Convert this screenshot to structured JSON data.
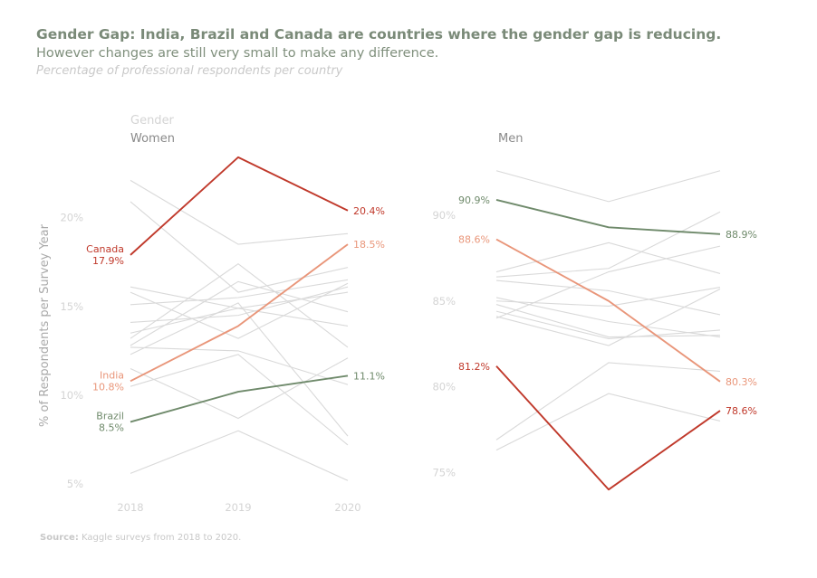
{
  "header": {
    "title": "Gender Gap: India, Brazil and Canada are countries where the gender gap is reducing.",
    "subtitle": "However changes are still very small to make any difference.",
    "caption": "Percentage of professional respondents per country"
  },
  "footer": {
    "source_label": "Source:",
    "source_text": "Kaggle surveys from 2018 to 2020."
  },
  "colors": {
    "canada": "#c0392b",
    "india": "#e9967a",
    "brazil": "#6f8a6b",
    "other": "#d9d9d9",
    "axis_text": "#d4d4d4"
  },
  "chart_data": {
    "type": "line",
    "ylabel": "% of Respondents per Survey Year",
    "legend_title": "Gender",
    "x": [
      "2018",
      "2019",
      "2020"
    ],
    "panels": [
      {
        "name": "Women",
        "yticks": [
          "5%",
          "10%",
          "15%",
          "20%"
        ],
        "ytick_values": [
          5,
          10,
          15,
          20
        ],
        "ylim": [
          4.5,
          23.8
        ],
        "highlight": [
          {
            "name": "Canada",
            "values": [
              17.9,
              23.4,
              20.4
            ],
            "color": "#c0392b",
            "start_label": [
              "Canada",
              "17.9%"
            ],
            "end_label": "20.4%"
          },
          {
            "name": "India",
            "values": [
              10.8,
              13.9,
              18.5
            ],
            "color": "#e9967a",
            "start_label": [
              "India",
              "10.8%"
            ],
            "end_label": "18.5%"
          },
          {
            "name": "Brazil",
            "values": [
              8.5,
              10.2,
              11.1
            ],
            "color": "#6f8a6b",
            "start_label": [
              "Brazil",
              "8.5%"
            ],
            "end_label": "11.1%"
          }
        ],
        "others": [
          [
            22.1,
            18.5,
            19.1
          ],
          [
            20.9,
            15.8,
            17.2
          ],
          [
            16.1,
            14.9,
            15.8
          ],
          [
            15.8,
            13.2,
            16.3
          ],
          [
            15.1,
            15.5,
            16.5
          ],
          [
            14.1,
            14.5,
            16.1
          ],
          [
            13.5,
            14.9,
            13.9
          ],
          [
            13.2,
            17.4,
            12.7
          ],
          [
            12.8,
            16.4,
            14.7
          ],
          [
            12.7,
            12.5,
            10.6
          ],
          [
            12.3,
            15.2,
            7.7
          ],
          [
            11.5,
            8.7,
            12.1
          ],
          [
            10.5,
            12.3,
            7.2
          ],
          [
            5.6,
            8.0,
            5.2
          ]
        ]
      },
      {
        "name": "Men",
        "yticks": [
          "75%",
          "80%",
          "85%",
          "90%"
        ],
        "ytick_values": [
          75,
          80,
          85,
          90
        ],
        "ylim": [
          73.8,
          93.8
        ],
        "highlight": [
          {
            "name": "Canada",
            "values": [
              81.2,
              74.0,
              78.6
            ],
            "color": "#c0392b",
            "start_label": [
              "81.2%"
            ],
            "end_label": "78.6%"
          },
          {
            "name": "India",
            "values": [
              88.6,
              85.0,
              80.3
            ],
            "color": "#e9967a",
            "start_label": [
              "88.6%"
            ],
            "end_label": "80.3%"
          },
          {
            "name": "Brazil",
            "values": [
              90.9,
              89.3,
              88.9
            ],
            "color": "#6f8a6b",
            "start_label": [
              "90.9%"
            ],
            "end_label": "88.9%"
          }
        ],
        "others": [
          [
            92.6,
            90.8,
            92.6
          ],
          [
            86.7,
            88.4,
            86.6
          ],
          [
            86.4,
            86.9,
            90.2
          ],
          [
            86.2,
            85.6,
            84.2
          ],
          [
            85.2,
            83.8,
            82.9
          ],
          [
            85.0,
            84.7,
            85.8
          ],
          [
            84.8,
            82.9,
            83.0
          ],
          [
            84.4,
            82.8,
            83.3
          ],
          [
            84.1,
            82.4,
            85.7
          ],
          [
            84.0,
            86.7,
            88.2
          ],
          [
            76.9,
            81.4,
            80.9
          ],
          [
            76.3,
            79.6,
            78.0
          ]
        ]
      }
    ]
  }
}
